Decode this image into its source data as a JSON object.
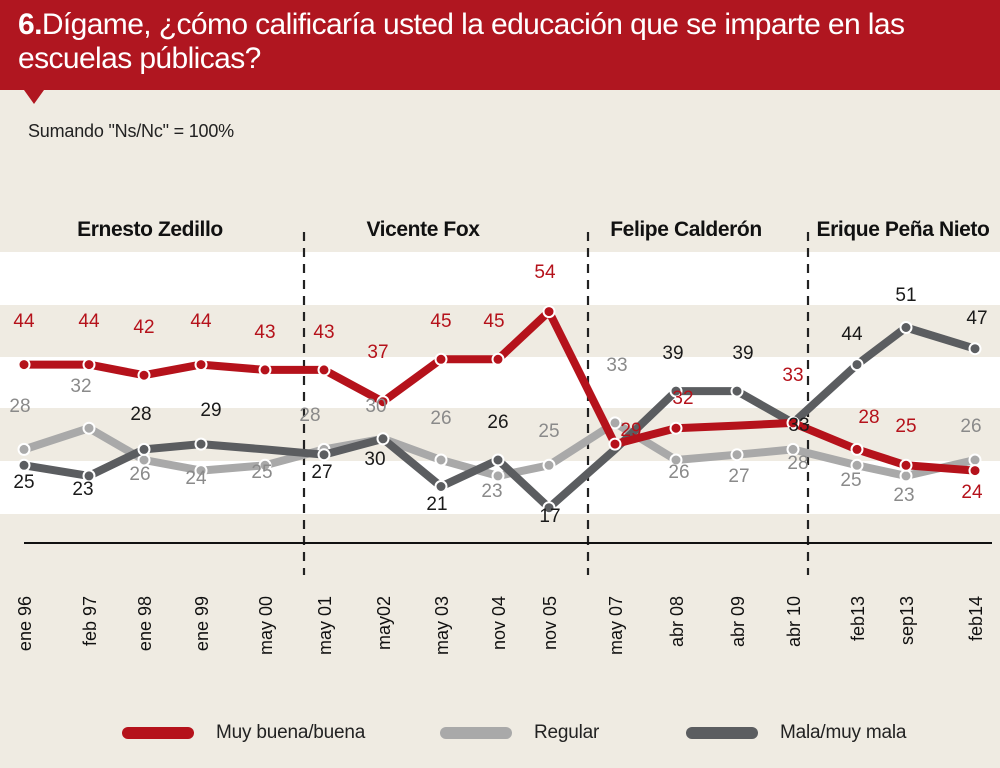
{
  "header": {
    "number": "6.",
    "title": "Dígame, ¿cómo calificaría usted la educación que se imparte en las escuelas públicas?"
  },
  "subtitle": "Sumando  \"Ns/Nc\" = 100%",
  "colors": {
    "header_bg": "#b01620",
    "muy_buena": "#b5121b",
    "regular": "#a9a9a9",
    "mala": "#5b5d60",
    "band": "#ffffff",
    "background": "#efebe2"
  },
  "periods": [
    {
      "label": "Ernesto Zedillo"
    },
    {
      "label": "Vicente Fox"
    },
    {
      "label": "Felipe Calderón"
    },
    {
      "label": "Erique Peña Nieto"
    }
  ],
  "chart_data": {
    "type": "line",
    "title": "Dígame, ¿cómo calificaría usted la educación que se imparte en las escuelas públicas?",
    "x": [
      "ene 96",
      "feb 97",
      "ene 98",
      "ene 99",
      "may 00",
      "may 01",
      "may02",
      "may 03",
      "nov 04",
      "nov 05",
      "may 07",
      "abr 08",
      "abr 09",
      "abr 10",
      "feb13",
      "sep13",
      "feb14"
    ],
    "series": [
      {
        "name": "Muy buena/buena",
        "values": [
          44,
          44,
          42,
          44,
          43,
          43,
          37,
          45,
          45,
          54,
          29,
          32,
          null,
          33,
          28,
          25,
          24
        ]
      },
      {
        "name": "Regular",
        "values": [
          28,
          32,
          26,
          24,
          25,
          28,
          30,
          26,
          23,
          25,
          33,
          26,
          27,
          28,
          25,
          23,
          26
        ]
      },
      {
        "name": "Mala/muy mala",
        "values": [
          25,
          23,
          28,
          29,
          null,
          27,
          30,
          21,
          26,
          17,
          null,
          39,
          39,
          33,
          44,
          51,
          47
        ]
      }
    ],
    "ylim": [
      10,
      60
    ],
    "legend_position": "bottom",
    "grid": false
  },
  "legend": [
    {
      "label": "Muy buena/buena"
    },
    {
      "label": "Regular"
    },
    {
      "label": "Mala/muy mala"
    }
  ]
}
